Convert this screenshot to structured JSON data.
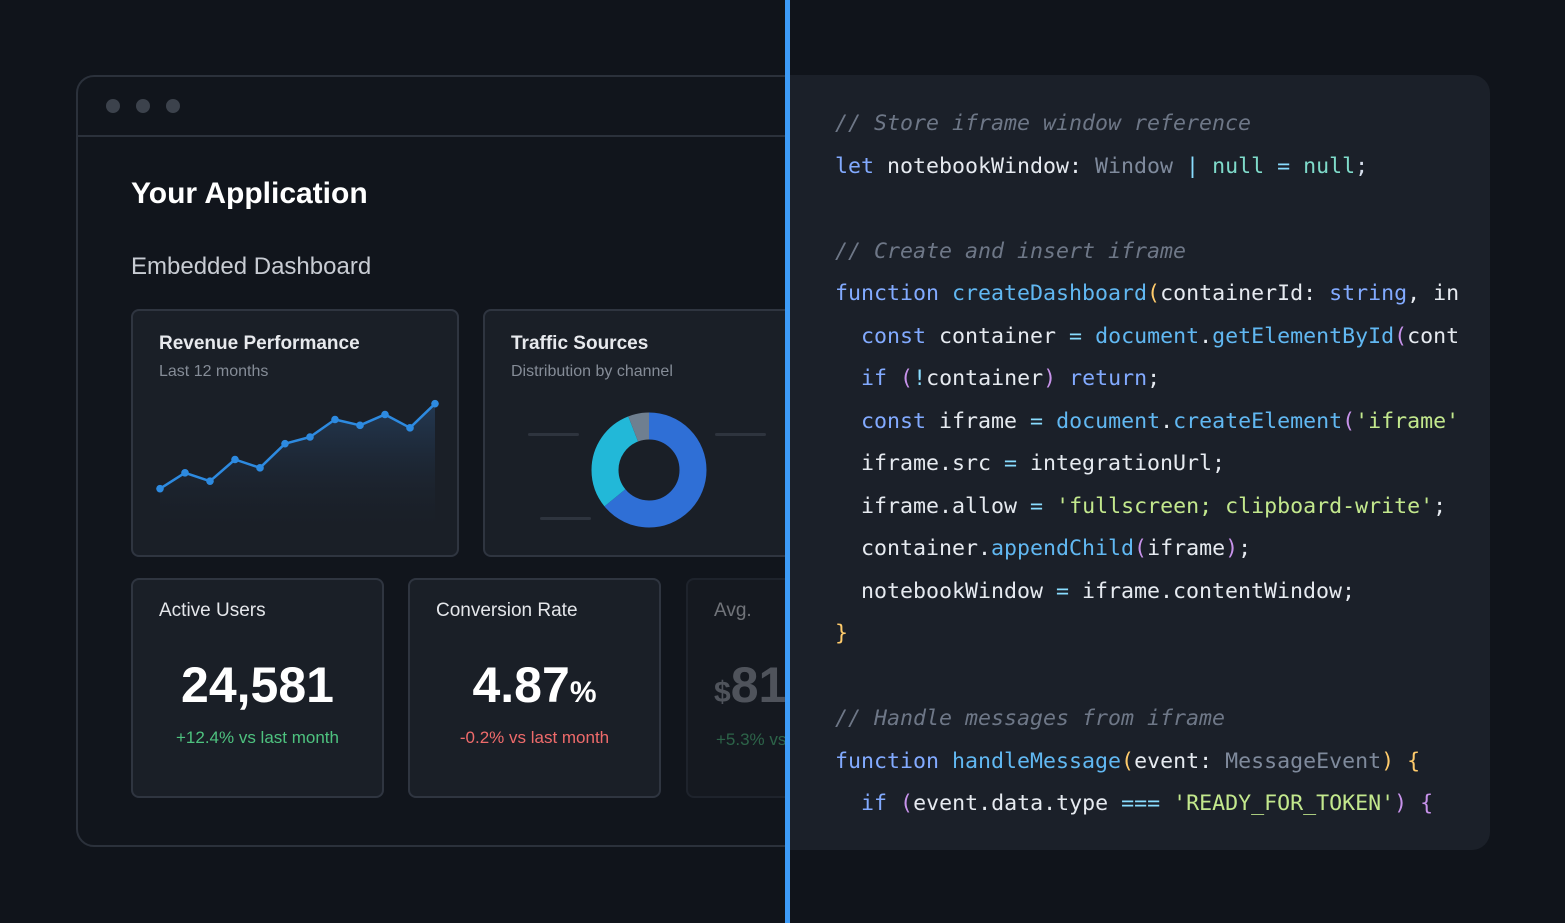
{
  "app": {
    "title": "Your Application",
    "subtitle": "Embedded Dashboard"
  },
  "revenue_card": {
    "title": "Revenue Performance",
    "subtitle": "Last 12 months"
  },
  "traffic_card": {
    "title": "Traffic Sources",
    "subtitle": "Distribution by channel"
  },
  "kpis": [
    {
      "title": "Active Users",
      "value": "24,581",
      "unit": "",
      "delta": "+12.4% vs last month",
      "trend": "up"
    },
    {
      "title": "Conversion Rate",
      "value": "4.87",
      "unit": "%",
      "delta": "-0.2% vs last month",
      "trend": "down"
    },
    {
      "title": "Avg.",
      "value": "81",
      "prefix": "$",
      "delta": "+5.3% vs",
      "trend": "up"
    }
  ],
  "chart_data": [
    {
      "type": "area",
      "title": "Revenue Performance",
      "subtitle": "Last 12 months",
      "x": [
        1,
        2,
        3,
        4,
        5,
        6,
        7,
        8,
        9,
        10,
        11,
        12
      ],
      "values": [
        10,
        29,
        19,
        45,
        35,
        64,
        72,
        93,
        86,
        99,
        83,
        112
      ],
      "ylim": [
        0,
        120
      ],
      "grid": false,
      "colors": {
        "line": "#2d8ae0",
        "fill_top": "#243a55",
        "fill_bottom": "#1a1f27"
      }
    },
    {
      "type": "pie",
      "title": "Traffic Sources",
      "subtitle": "Distribution by channel",
      "slices": [
        {
          "value": 64,
          "color": "#2f6fd6"
        },
        {
          "value": 30,
          "color": "#22b8d8"
        },
        {
          "value": 6,
          "color": "#6f7f90"
        }
      ]
    }
  ],
  "code": {
    "lines": [
      [
        [
          "// Store iframe window reference",
          "cm"
        ]
      ],
      [
        [
          "let",
          "kw"
        ],
        [
          " notebookWindow: ",
          "tx"
        ],
        [
          "Window",
          "ty"
        ],
        [
          " | ",
          "op"
        ],
        [
          "null",
          "lit"
        ],
        [
          " = ",
          "op"
        ],
        [
          "null",
          "lit"
        ],
        [
          ";",
          "pr"
        ]
      ],
      [],
      [
        [
          "// Create and insert iframe",
          "cm"
        ]
      ],
      [
        [
          "function",
          "kw"
        ],
        [
          " ",
          "tx"
        ],
        [
          "createDashboard",
          "fn"
        ],
        [
          "(",
          "pu"
        ],
        [
          "containerId: ",
          "tx"
        ],
        [
          "string",
          "kw"
        ],
        [
          ", in",
          "tx"
        ]
      ],
      [
        [
          "  ",
          "tx"
        ],
        [
          "const",
          "kw"
        ],
        [
          " container ",
          "tx"
        ],
        [
          "=",
          "op"
        ],
        [
          " document",
          "fn"
        ],
        [
          ".",
          "tx"
        ],
        [
          "getElementById",
          "fn"
        ],
        [
          "(",
          "pm"
        ],
        [
          "cont",
          "tx"
        ]
      ],
      [
        [
          "  ",
          "tx"
        ],
        [
          "if",
          "kw"
        ],
        [
          " ",
          "tx"
        ],
        [
          "(",
          "pm"
        ],
        [
          "!",
          "op"
        ],
        [
          "container",
          "tx"
        ],
        [
          ")",
          "pm"
        ],
        [
          " return",
          "kw"
        ],
        [
          ";",
          "tx"
        ]
      ],
      [
        [
          "  ",
          "tx"
        ],
        [
          "const",
          "kw"
        ],
        [
          " iframe ",
          "tx"
        ],
        [
          "=",
          "op"
        ],
        [
          " document",
          "fn"
        ],
        [
          ".",
          "tx"
        ],
        [
          "createElement",
          "fn"
        ],
        [
          "(",
          "pm"
        ],
        [
          "'iframe'",
          "str"
        ]
      ],
      [
        [
          "  ",
          "tx"
        ],
        [
          "iframe.src ",
          "tx"
        ],
        [
          "=",
          "op"
        ],
        [
          " integrationUrl;",
          "tx"
        ]
      ],
      [
        [
          "  ",
          "tx"
        ],
        [
          "iframe.allow ",
          "tx"
        ],
        [
          "=",
          "op"
        ],
        [
          " ",
          "tx"
        ],
        [
          "'fullscreen; clipboard-write'",
          "str"
        ],
        [
          ";",
          "tx"
        ]
      ],
      [
        [
          "  ",
          "tx"
        ],
        [
          "container.",
          "tx"
        ],
        [
          "appendChild",
          "fn"
        ],
        [
          "(",
          "pm"
        ],
        [
          "iframe",
          "tx"
        ],
        [
          ")",
          "pm"
        ],
        [
          ";",
          "tx"
        ]
      ],
      [
        [
          "  ",
          "tx"
        ],
        [
          "notebookWindow ",
          "tx"
        ],
        [
          "=",
          "op"
        ],
        [
          " iframe.contentWindow;",
          "tx"
        ]
      ],
      [
        [
          "}",
          "pu"
        ]
      ],
      [],
      [
        [
          "// Handle messages from iframe",
          "cm"
        ]
      ],
      [
        [
          "function",
          "kw"
        ],
        [
          " ",
          "tx"
        ],
        [
          "handleMessage",
          "fn"
        ],
        [
          "(",
          "pu"
        ],
        [
          "event: ",
          "tx"
        ],
        [
          "MessageEvent",
          "ty"
        ],
        [
          ")",
          "pu"
        ],
        [
          " {",
          "pu"
        ]
      ],
      [
        [
          "  ",
          "tx"
        ],
        [
          "if",
          "kw"
        ],
        [
          " ",
          "tx"
        ],
        [
          "(",
          "pm"
        ],
        [
          "event.data.type ",
          "tx"
        ],
        [
          "===",
          "op"
        ],
        [
          " ",
          "tx"
        ],
        [
          "'READY_FOR_TOKEN'",
          "str"
        ],
        [
          ")",
          "pm"
        ],
        [
          " {",
          "pm"
        ]
      ]
    ]
  }
}
